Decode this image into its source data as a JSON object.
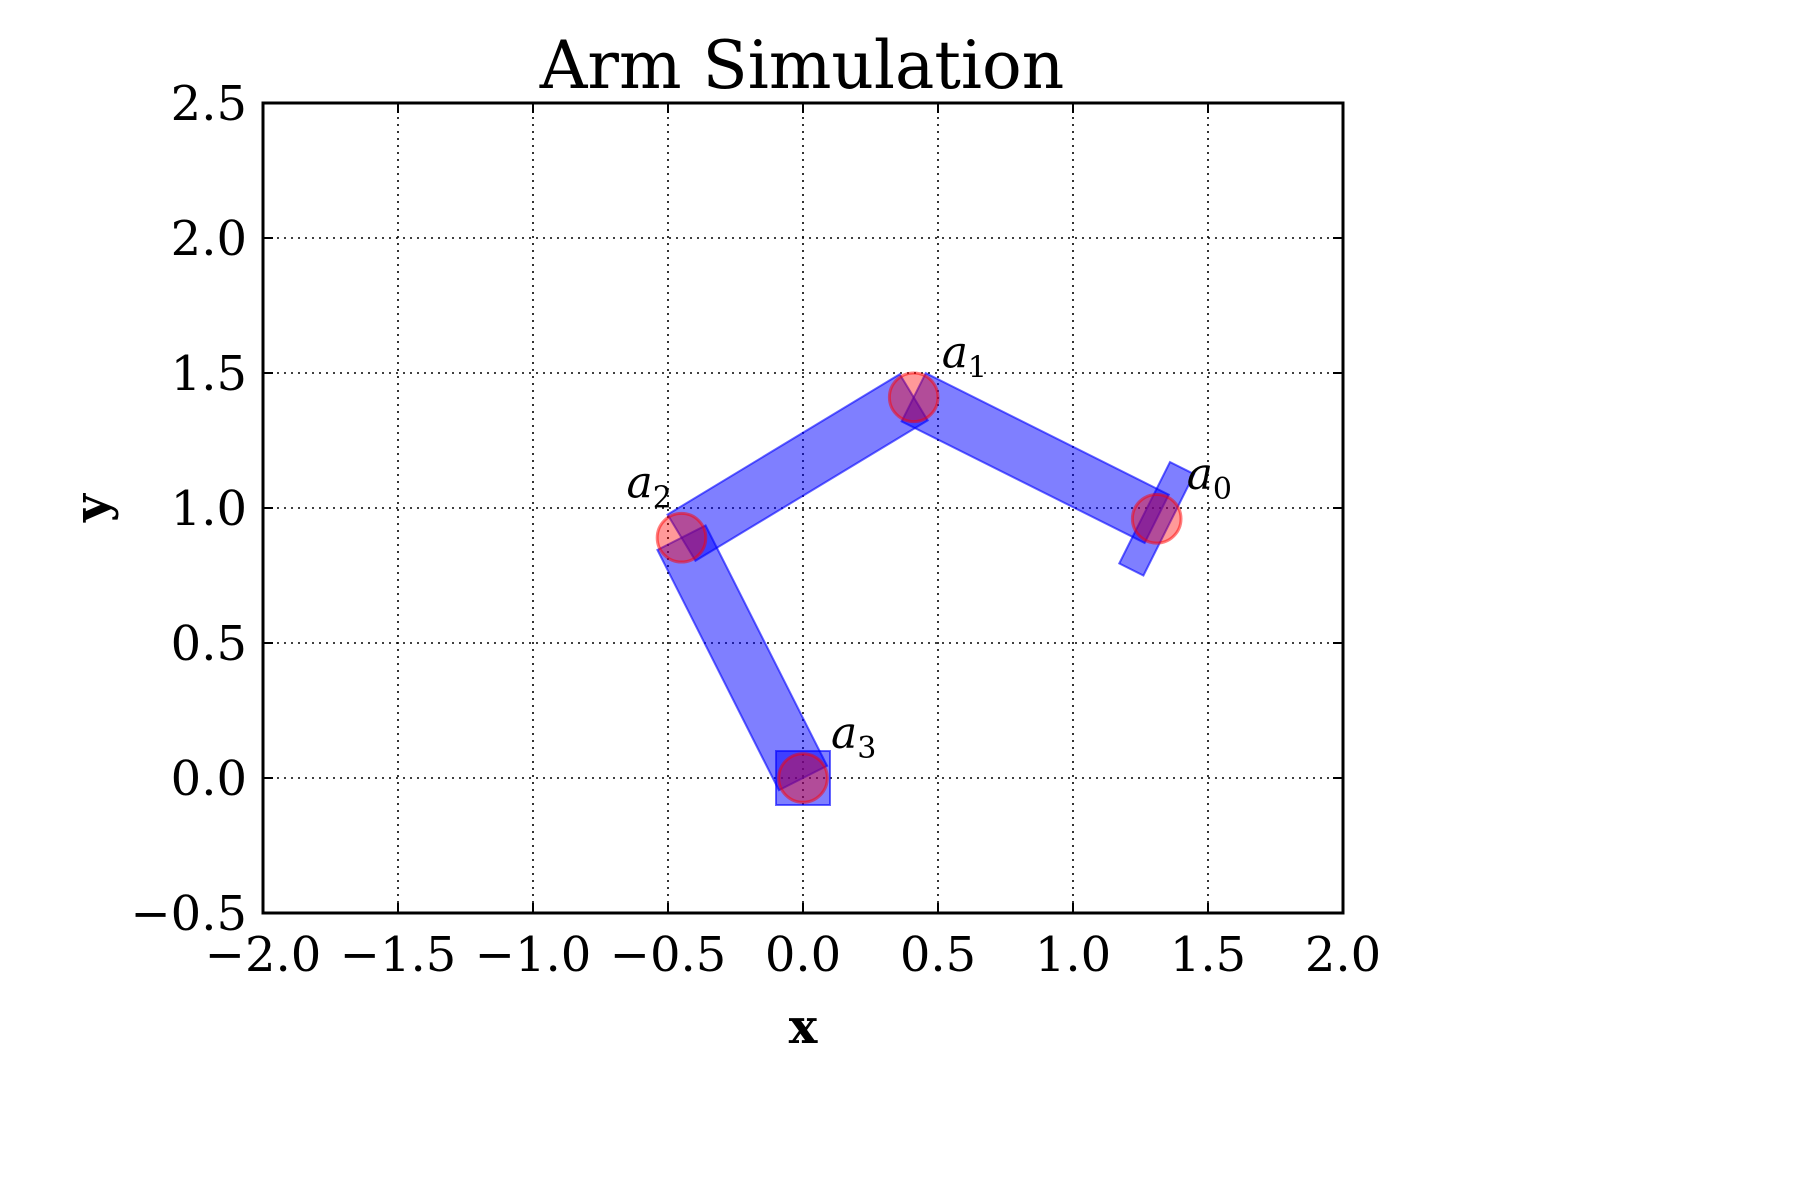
{
  "chart_data": {
    "type": "scatter",
    "title": "Arm Simulation",
    "xlabel": "x",
    "ylabel": "y",
    "xlim": [
      -2.0,
      2.0
    ],
    "ylim": [
      -0.5,
      2.5
    ],
    "grid": true,
    "xticks": [
      -2.0,
      -1.5,
      -1.0,
      -0.5,
      0.0,
      0.5,
      1.0,
      1.5,
      2.0
    ],
    "yticks": [
      -0.5,
      0.0,
      0.5,
      1.0,
      1.5,
      2.0,
      2.5
    ],
    "xtick_labels": [
      "−2.0",
      "−1.5",
      "−1.0",
      "−0.5",
      "0.0",
      "0.5",
      "1.0",
      "1.5",
      "2.0"
    ],
    "ytick_labels": [
      "−0.5",
      "0.0",
      "0.5",
      "1.0",
      "1.5",
      "2.0",
      "2.5"
    ],
    "joints": [
      {
        "label": "a",
        "subscript": "0",
        "x": 1.31,
        "y": 0.96
      },
      {
        "label": "a",
        "subscript": "1",
        "x": 0.41,
        "y": 1.41
      },
      {
        "label": "a",
        "subscript": "2",
        "x": -0.45,
        "y": 0.89
      },
      {
        "label": "a",
        "subscript": "3",
        "x": 0.0,
        "y": 0.0
      }
    ],
    "joint_radius": 0.09,
    "link_width": 0.2,
    "base_box_half_size": 0.1,
    "end_effector_bar": {
      "length": 0.42,
      "width": 0.1
    },
    "colors": {
      "link": "#0000ff",
      "joint": "#ff0000",
      "grid": "#000000",
      "text": "#000000"
    }
  }
}
